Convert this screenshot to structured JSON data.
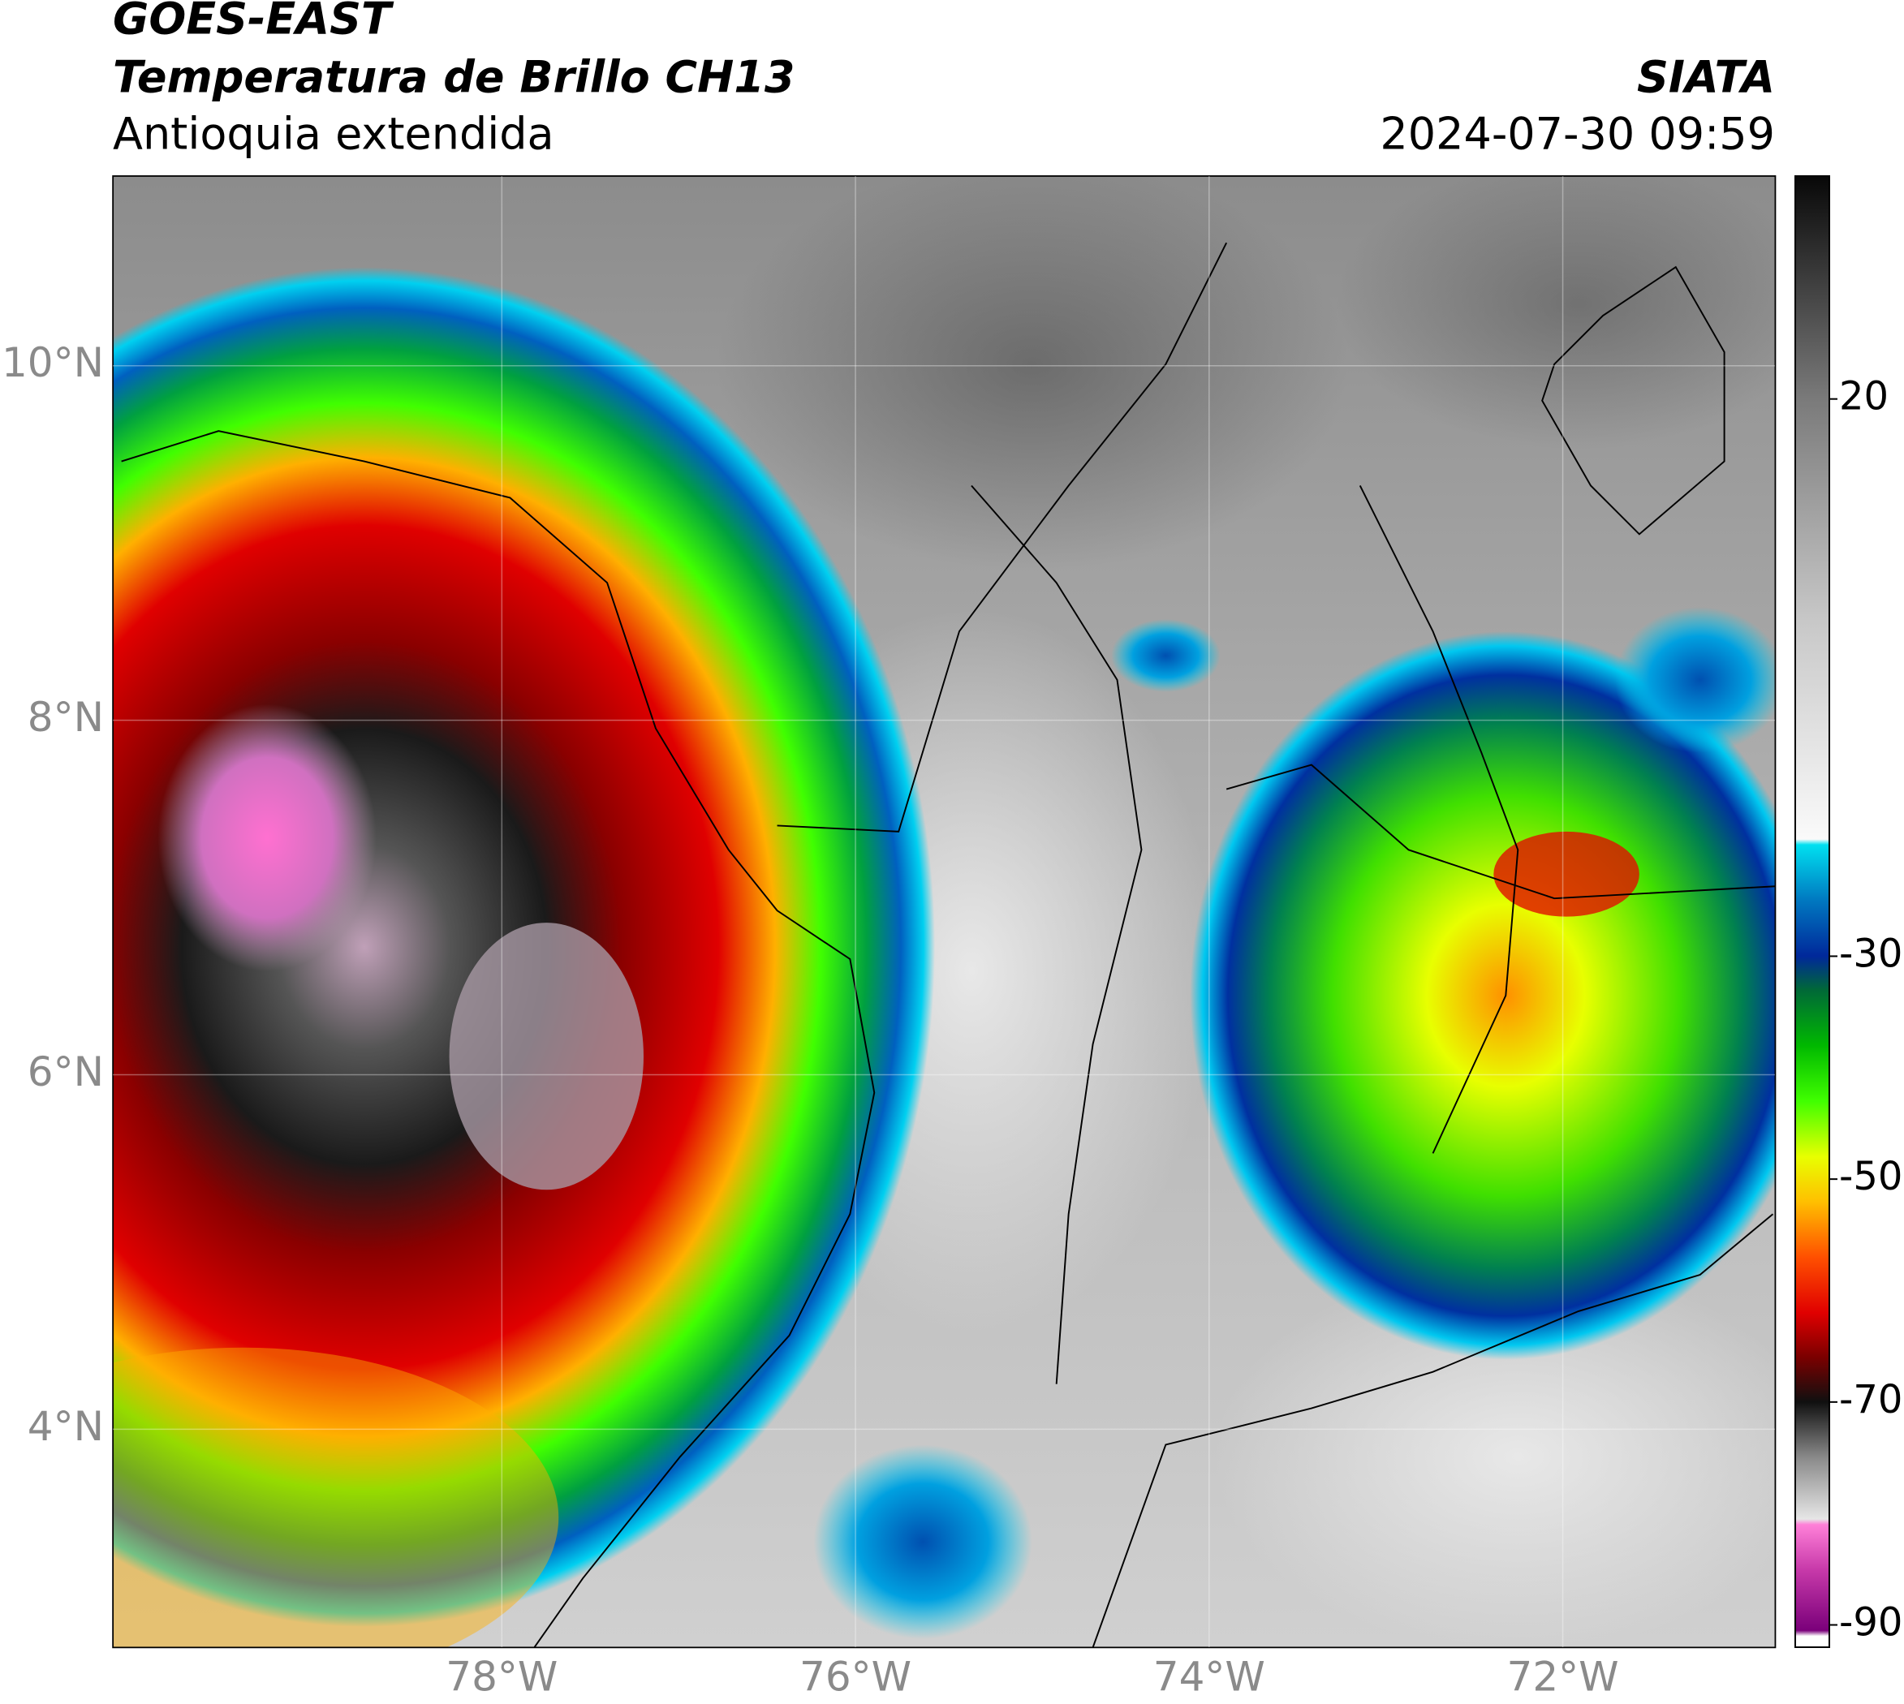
{
  "header": {
    "title": "GOES-EAST",
    "subtitle": "Temperatura de Brillo CH13",
    "region": "Antioquia extendida",
    "source": "SIATA",
    "timestamp": "2024-07-30 09:59"
  },
  "map": {
    "xlim": [
      -80.2,
      -70.8
    ],
    "ylim": [
      2.77,
      11.07
    ],
    "xticks": [
      {
        "value": -78,
        "label": "78°W"
      },
      {
        "value": -76,
        "label": "76°W"
      },
      {
        "value": -74,
        "label": "74°W"
      },
      {
        "value": -72,
        "label": "72°W"
      }
    ],
    "yticks": [
      {
        "value": 4,
        "label": "4°N"
      },
      {
        "value": 6,
        "label": "6°N"
      },
      {
        "value": 8,
        "label": "8°N"
      },
      {
        "value": 10,
        "label": "10°N"
      }
    ],
    "grid": true
  },
  "colorbar": {
    "clim": [
      -92,
      40
    ],
    "ticks": [
      20,
      -30,
      -50,
      -70,
      -90
    ],
    "stops": [
      {
        "value": -92,
        "color": "#ffffff"
      },
      {
        "value": -91,
        "color": "#ffffff"
      },
      {
        "value": -90.5,
        "color": "#7a007a"
      },
      {
        "value": -85,
        "color": "#c83aaa"
      },
      {
        "value": -81,
        "color": "#ff80d8"
      },
      {
        "value": -80.5,
        "color": "#e6e6e6"
      },
      {
        "value": -75,
        "color": "#8a8a8a"
      },
      {
        "value": -70,
        "color": "#101010"
      },
      {
        "value": -66,
        "color": "#7a0000"
      },
      {
        "value": -62,
        "color": "#e00000"
      },
      {
        "value": -57,
        "color": "#ff5000"
      },
      {
        "value": -52,
        "color": "#ffc000"
      },
      {
        "value": -48,
        "color": "#e8ff00"
      },
      {
        "value": -43,
        "color": "#40ff00"
      },
      {
        "value": -38,
        "color": "#00b800"
      },
      {
        "value": -33,
        "color": "#006838"
      },
      {
        "value": -30,
        "color": "#00289a"
      },
      {
        "value": -25,
        "color": "#0078c0"
      },
      {
        "value": -20,
        "color": "#00e0f0"
      },
      {
        "value": -19.5,
        "color": "#fafafa"
      },
      {
        "value": 0,
        "color": "#c8c8c8"
      },
      {
        "value": 20,
        "color": "#7a7a7a"
      },
      {
        "value": 40,
        "color": "#080808"
      }
    ]
  }
}
